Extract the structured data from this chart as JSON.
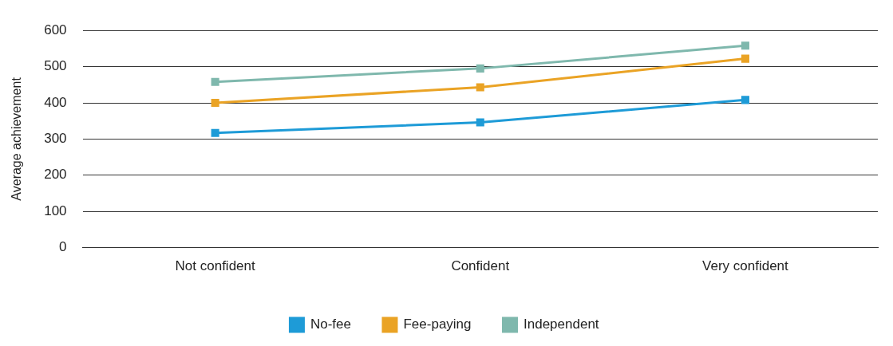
{
  "chart_data": {
    "type": "line",
    "ylabel": "Average achievement",
    "categories": [
      "Not confident",
      "Confident",
      "Very confident"
    ],
    "series": [
      {
        "name": "No-fee",
        "color": "#1e9bd7",
        "values": [
          317,
          346,
          408
        ]
      },
      {
        "name": "Fee-paying",
        "color": "#eaa325",
        "values": [
          400,
          443,
          522
        ]
      },
      {
        "name": "Independent",
        "color": "#7fb8ad",
        "values": [
          458,
          495,
          558
        ]
      }
    ],
    "ylim": [
      0,
      600
    ],
    "yticks": [
      0,
      100,
      200,
      300,
      400,
      500,
      600
    ],
    "grid": "y",
    "legend": "bottom",
    "marker": "square",
    "line_style": "solid"
  }
}
